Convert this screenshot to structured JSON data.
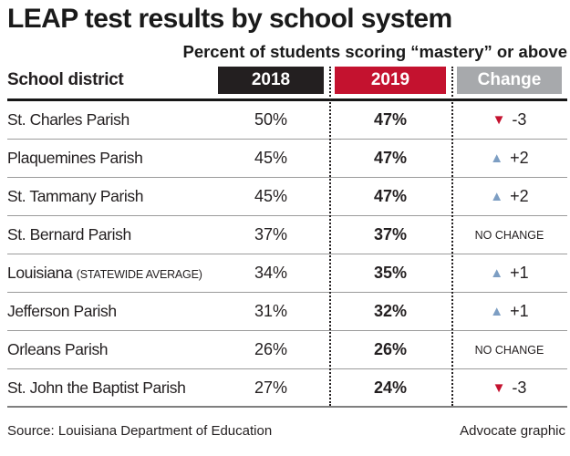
{
  "title": "LEAP test results by school system",
  "subtitle": "Percent of students scoring “mastery” or above",
  "table": {
    "district_header": "School district",
    "columns": [
      {
        "label": "2018",
        "bg": "#231f20"
      },
      {
        "label": "2019",
        "bg": "#c4122f"
      },
      {
        "label": "Change",
        "bg": "#a7a9ac"
      }
    ],
    "rows": [
      {
        "district": "St. Charles Parish",
        "note": "",
        "v2018": "50%",
        "v2019": "47%",
        "change_dir": "down",
        "change_label": "-3"
      },
      {
        "district": "Plaquemines Parish",
        "note": "",
        "v2018": "45%",
        "v2019": "47%",
        "change_dir": "up",
        "change_label": "+2"
      },
      {
        "district": "St. Tammany Parish",
        "note": "",
        "v2018": "45%",
        "v2019": "47%",
        "change_dir": "up",
        "change_label": "+2"
      },
      {
        "district": "St. Bernard Parish",
        "note": "",
        "v2018": "37%",
        "v2019": "37%",
        "change_dir": "none",
        "change_label": "NO CHANGE"
      },
      {
        "district": "Louisiana",
        "note": "(STATEWIDE AVERAGE)",
        "v2018": "34%",
        "v2019": "35%",
        "change_dir": "up",
        "change_label": "+1"
      },
      {
        "district": "Jefferson Parish",
        "note": "",
        "v2018": "31%",
        "v2019": "32%",
        "change_dir": "up",
        "change_label": "+1"
      },
      {
        "district": "Orleans Parish",
        "note": "",
        "v2018": "26%",
        "v2019": "26%",
        "change_dir": "none",
        "change_label": "NO CHANGE"
      },
      {
        "district": "St. John the Baptist Parish",
        "note": "",
        "v2018": "27%",
        "v2019": "24%",
        "change_dir": "down",
        "change_label": "-3"
      }
    ]
  },
  "footer": {
    "source": "Source: Louisiana Department of Education",
    "credit": "Advocate graphic"
  },
  "colors": {
    "trend_up": "#7d9ec3",
    "trend_down": "#c4122f",
    "header_2018_bg": "#231f20",
    "header_2019_bg": "#c4122f",
    "header_change_bg": "#a7a9ac"
  },
  "chart_data": {
    "type": "table",
    "title": "LEAP test results by school system",
    "subtitle": "Percent of students scoring “mastery” or above",
    "columns": [
      "School district",
      "2018",
      "2019",
      "Change"
    ],
    "rows": [
      [
        "St. Charles Parish",
        50,
        47,
        -3
      ],
      [
        "Plaquemines Parish",
        45,
        47,
        2
      ],
      [
        "St. Tammany Parish",
        45,
        47,
        2
      ],
      [
        "St. Bernard Parish",
        37,
        37,
        0
      ],
      [
        "Louisiana (statewide average)",
        34,
        35,
        1
      ],
      [
        "Jefferson Parish",
        31,
        32,
        1
      ],
      [
        "Orleans Parish",
        26,
        26,
        0
      ],
      [
        "St. John the Baptist Parish",
        27,
        24,
        -3
      ]
    ],
    "units": "percent of students",
    "source": "Louisiana Department of Education"
  }
}
